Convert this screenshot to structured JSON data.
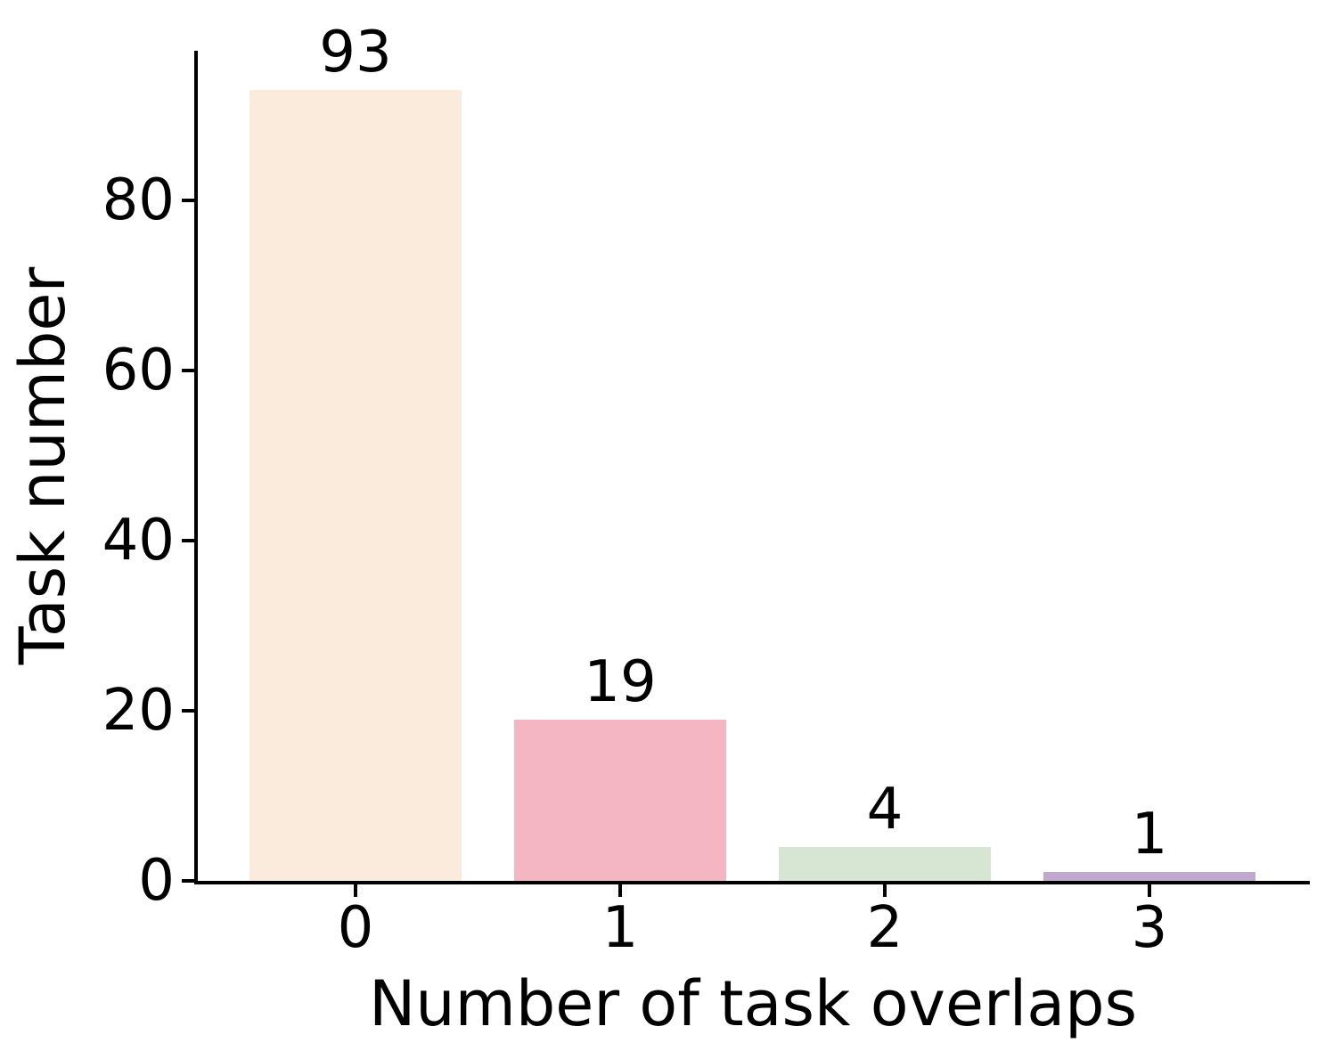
{
  "chart_data": {
    "type": "bar",
    "title": "",
    "categories": [
      "0",
      "1",
      "2",
      "3"
    ],
    "values": [
      93,
      19,
      4,
      1
    ],
    "bar_labels": [
      "93",
      "19",
      "4",
      "1"
    ],
    "xlabel": "Number of task overlaps",
    "ylabel": "Task number",
    "yticks": [
      0,
      20,
      40,
      60,
      80
    ],
    "ylim": [
      0,
      97.65
    ],
    "bar_colors": [
      "#faebdc",
      "#f4b6c2",
      "#d6e6d2",
      "#c2a8ce"
    ],
    "axis_color": "#000000",
    "text_color": "#000000",
    "background": "#ffffff",
    "grid": "off",
    "legend": "none"
  }
}
